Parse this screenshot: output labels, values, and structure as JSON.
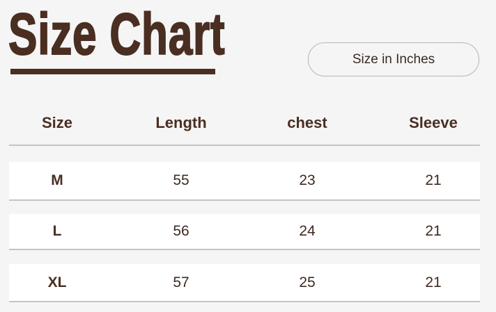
{
  "title": "Size Chart",
  "unit_label": "Size in Inches",
  "colors": {
    "brand": "#4a2e22",
    "background": "#f5f5f5",
    "row": "#ffffff",
    "divider": "#c4c4c4"
  },
  "table": {
    "headers": [
      "Size",
      "Length",
      "chest",
      "Sleeve"
    ],
    "rows": [
      {
        "size": "M",
        "length": "55",
        "chest": "23",
        "sleeve": "21"
      },
      {
        "size": "L",
        "length": "56",
        "chest": "24",
        "sleeve": "21"
      },
      {
        "size": "XL",
        "length": "57",
        "chest": "25",
        "sleeve": "21"
      }
    ]
  }
}
